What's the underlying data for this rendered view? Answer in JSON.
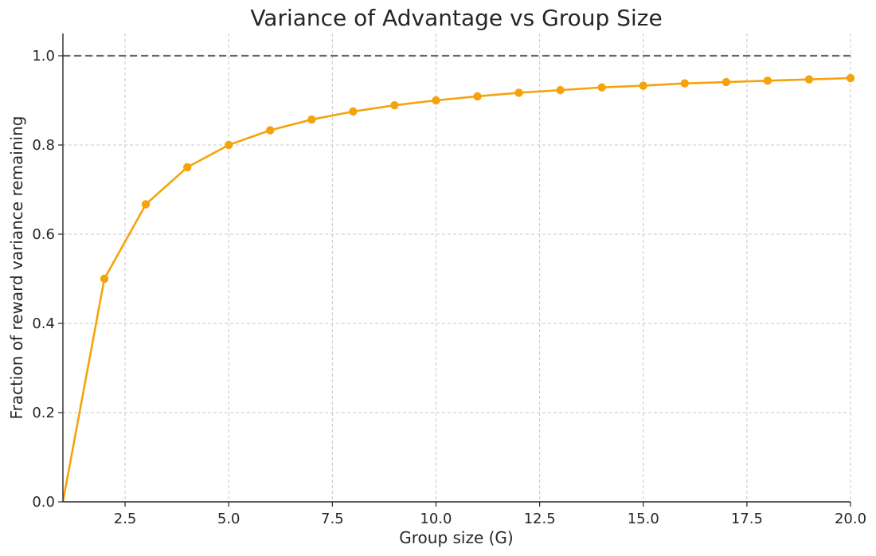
{
  "chart_data": {
    "type": "line",
    "title": "Variance of Advantage vs Group Size",
    "xlabel": "Group size (G)",
    "ylabel": "Fraction of reward variance remaining",
    "xlim": [
      1,
      20
    ],
    "ylim": [
      0,
      1.05
    ],
    "xticks": [
      2.5,
      5.0,
      7.5,
      10.0,
      12.5,
      15.0,
      17.5,
      20.0
    ],
    "xtick_labels": [
      "2.5",
      "5.0",
      "7.5",
      "10.0",
      "12.5",
      "15.0",
      "17.5",
      "20.0"
    ],
    "yticks": [
      0.0,
      0.2,
      0.4,
      0.6,
      0.8,
      1.0
    ],
    "ytick_labels": [
      "0.0",
      "0.2",
      "0.4",
      "0.6",
      "0.8",
      "1.0"
    ],
    "grid": true,
    "reference_line": {
      "y": 1.0,
      "color": "#666666",
      "style": "dashed"
    },
    "series": [
      {
        "color": "#F5A30C",
        "marker": "circle",
        "x": [
          1,
          2,
          3,
          4,
          5,
          6,
          7,
          8,
          9,
          10,
          11,
          12,
          13,
          14,
          15,
          16,
          17,
          18,
          19,
          20
        ],
        "y": [
          0.0,
          0.5,
          0.667,
          0.75,
          0.8,
          0.833,
          0.857,
          0.875,
          0.889,
          0.9,
          0.909,
          0.917,
          0.923,
          0.929,
          0.933,
          0.938,
          0.941,
          0.944,
          0.947,
          0.95
        ]
      }
    ]
  }
}
